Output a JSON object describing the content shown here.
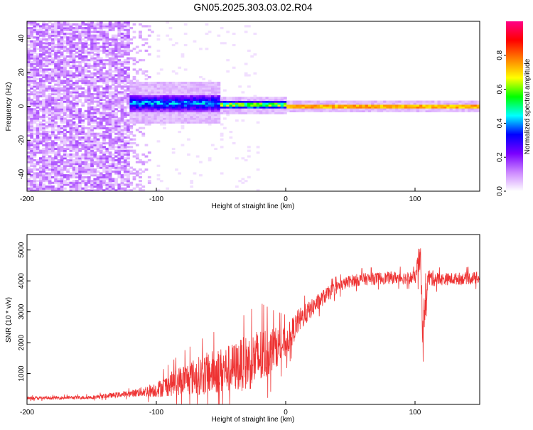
{
  "title": "GN05.2025.303.03.02.R04",
  "chart_data": [
    {
      "type": "heatmap",
      "title": "GN05.2025.303.03.02.R04",
      "xlabel": "Height of straight line (km)",
      "ylabel": "Frequency (Hz)",
      "xlim": [
        -200,
        150
      ],
      "ylim": [
        -50,
        50
      ],
      "xticks": [
        "-200",
        "-100",
        "0",
        "100"
      ],
      "yticks": [
        "-40",
        "-20",
        "0",
        "20",
        "40"
      ],
      "colorbar": {
        "label": "Normalized spectral amplitude",
        "range": [
          0,
          1
        ],
        "ticks": [
          "0.0",
          "0.2",
          "0.4",
          "0.6",
          "0.8"
        ],
        "colors": [
          "#ffffff",
          "#cc88ff",
          "#7a00ff",
          "#0000ff",
          "#00ffff",
          "#00ff00",
          "#ffff00",
          "#ff8000",
          "#ff0000",
          "#ff0088"
        ]
      },
      "features": [
        {
          "region": "noise",
          "x_range": [
            -200,
            -120
          ],
          "y_range": [
            -50,
            50
          ],
          "amplitude": 0.12
        },
        {
          "region": "fading-noise",
          "x_range": [
            -120,
            -100
          ],
          "y_range": [
            -50,
            50
          ],
          "amplitude": 0.05
        },
        {
          "region": "tone-broad",
          "x_range": [
            -120,
            -50
          ],
          "center_hz": 2,
          "half_width_hz": 5,
          "amplitude": 0.45
        },
        {
          "region": "tone-narrowing",
          "x_range": [
            -50,
            0
          ],
          "center_hz": 1,
          "half_width_hz": 2,
          "amplitude": 0.75
        },
        {
          "region": "carrier",
          "x_range": [
            0,
            150
          ],
          "center_hz": 0,
          "half_width_hz": 1.2,
          "amplitude": 0.95
        }
      ]
    },
    {
      "type": "line",
      "xlabel": "Height of straight line (km)",
      "ylabel": "SNR (10 * v/v)",
      "xlim": [
        -200,
        150
      ],
      "ylim": [
        0,
        5500
      ],
      "xticks": [
        "-200",
        "-100",
        "0",
        "100"
      ],
      "yticks": [
        "1000",
        "2000",
        "3000",
        "4000",
        "5000"
      ],
      "color": "#ee3333",
      "series": [
        {
          "name": "SNR",
          "x": [
            -200,
            -150,
            -120,
            -100,
            -80,
            -60,
            -40,
            -20,
            -10,
            0,
            10,
            20,
            30,
            40,
            50,
            60,
            80,
            100,
            104,
            106,
            110,
            120,
            150
          ],
          "values": [
            200,
            230,
            350,
            480,
            800,
            1000,
            1200,
            1500,
            1800,
            2000,
            2700,
            3100,
            3500,
            3800,
            4000,
            4050,
            4100,
            4100,
            4800,
            2500,
            4100,
            4050,
            4100
          ],
          "noise": [
            50,
            60,
            100,
            250,
            500,
            700,
            800,
            1000,
            700,
            500,
            400,
            300,
            250,
            200,
            200,
            200,
            200,
            200,
            600,
            700,
            300,
            200,
            200
          ]
        }
      ]
    }
  ]
}
